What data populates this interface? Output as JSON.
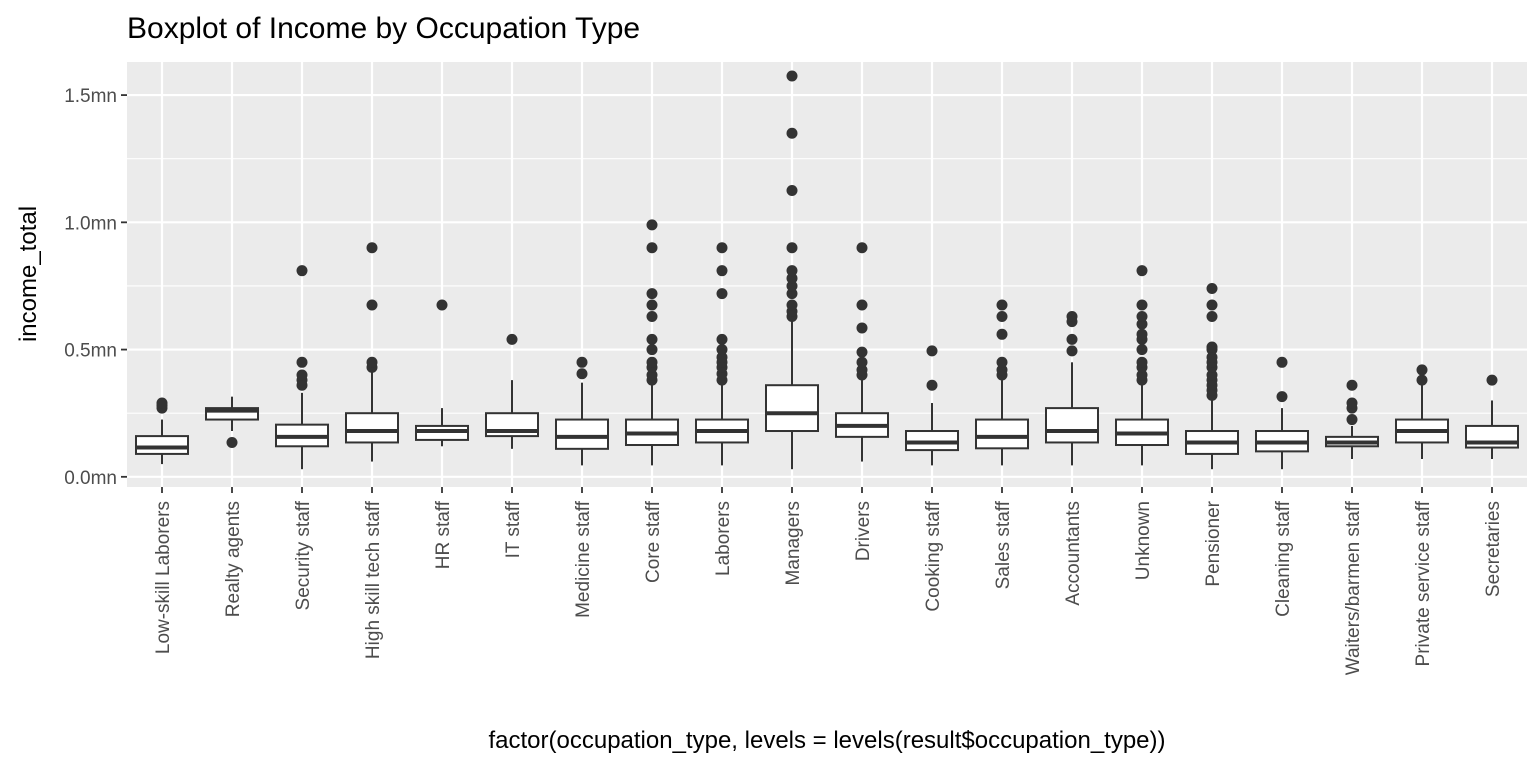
{
  "chart_data": {
    "type": "boxplot",
    "title": "Boxplot of Income by Occupation Type",
    "xlabel": "factor(occupation_type, levels = levels(result$occupation_type))",
    "ylabel": "income_total",
    "ylim": [
      -0.04,
      1.63
    ],
    "yticks": [
      {
        "value": 0.0,
        "label": "0.0mn"
      },
      {
        "value": 0.5,
        "label": "0.5mn"
      },
      {
        "value": 1.0,
        "label": "1.0mn"
      },
      {
        "value": 1.5,
        "label": "1.5mn"
      }
    ],
    "grid": true,
    "legend": "none",
    "colors": {
      "panel": "#ebebeb",
      "grid": "#ffffff",
      "box_fill": "#ffffff",
      "box_line": "#333333",
      "outlier": "#333333"
    },
    "categories": [
      "Low-skill Laborers",
      "Realty agents",
      "Security staff",
      "High skill tech staff",
      "HR staff",
      "IT staff",
      "Medicine staff",
      "Core staff",
      "Laborers",
      "Managers",
      "Drivers",
      "Cooking staff",
      "Sales staff",
      "Accountants",
      "Unknown",
      "Pensioner",
      "Cleaning staff",
      "Waiters/barmen staff",
      "Private service staff",
      "Secretaries"
    ],
    "boxes": [
      {
        "whisker_low": 0.05,
        "q1": 0.09,
        "median": 0.115,
        "q3": 0.16,
        "whisker_high": 0.225,
        "outliers": [
          0.27,
          0.28,
          0.29
        ]
      },
      {
        "whisker_low": 0.18,
        "q1": 0.225,
        "median": 0.26,
        "q3": 0.27,
        "whisker_high": 0.315,
        "outliers": [
          0.135
        ]
      },
      {
        "whisker_low": 0.03,
        "q1": 0.12,
        "median": 0.157,
        "q3": 0.205,
        "whisker_high": 0.33,
        "outliers": [
          0.36,
          0.38,
          0.4,
          0.45,
          0.81
        ]
      },
      {
        "whisker_low": 0.06,
        "q1": 0.135,
        "median": 0.18,
        "q3": 0.25,
        "whisker_high": 0.41,
        "outliers": [
          0.43,
          0.45,
          0.675,
          0.9
        ]
      },
      {
        "whisker_low": 0.12,
        "q1": 0.145,
        "median": 0.18,
        "q3": 0.2,
        "whisker_high": 0.27,
        "outliers": [
          0.675
        ]
      },
      {
        "whisker_low": 0.11,
        "q1": 0.16,
        "median": 0.18,
        "q3": 0.25,
        "whisker_high": 0.38,
        "outliers": [
          0.54
        ]
      },
      {
        "whisker_low": 0.045,
        "q1": 0.11,
        "median": 0.157,
        "q3": 0.225,
        "whisker_high": 0.37,
        "outliers": [
          0.405,
          0.45
        ]
      },
      {
        "whisker_low": 0.045,
        "q1": 0.125,
        "median": 0.17,
        "q3": 0.225,
        "whisker_high": 0.37,
        "outliers": [
          0.38,
          0.4,
          0.43,
          0.45,
          0.5,
          0.54,
          0.63,
          0.675,
          0.72,
          0.9,
          0.99
        ]
      },
      {
        "whisker_low": 0.045,
        "q1": 0.135,
        "median": 0.18,
        "q3": 0.225,
        "whisker_high": 0.37,
        "outliers": [
          0.38,
          0.405,
          0.43,
          0.45,
          0.47,
          0.5,
          0.54,
          0.72,
          0.81,
          0.9
        ]
      },
      {
        "whisker_low": 0.03,
        "q1": 0.18,
        "median": 0.25,
        "q3": 0.36,
        "whisker_high": 0.62,
        "outliers": [
          0.63,
          0.65,
          0.675,
          0.72,
          0.75,
          0.78,
          0.81,
          0.9,
          1.125,
          1.35,
          1.575
        ]
      },
      {
        "whisker_low": 0.06,
        "q1": 0.157,
        "median": 0.2,
        "q3": 0.25,
        "whisker_high": 0.39,
        "outliers": [
          0.4,
          0.42,
          0.45,
          0.49,
          0.585,
          0.675,
          0.9
        ]
      },
      {
        "whisker_low": 0.045,
        "q1": 0.105,
        "median": 0.135,
        "q3": 0.18,
        "whisker_high": 0.29,
        "outliers": [
          0.36,
          0.495
        ]
      },
      {
        "whisker_low": 0.045,
        "q1": 0.112,
        "median": 0.157,
        "q3": 0.225,
        "whisker_high": 0.38,
        "outliers": [
          0.4,
          0.42,
          0.45,
          0.56,
          0.63,
          0.675
        ]
      },
      {
        "whisker_low": 0.045,
        "q1": 0.135,
        "median": 0.18,
        "q3": 0.27,
        "whisker_high": 0.45,
        "outliers": [
          0.495,
          0.54,
          0.61,
          0.63
        ]
      },
      {
        "whisker_low": 0.045,
        "q1": 0.125,
        "median": 0.17,
        "q3": 0.225,
        "whisker_high": 0.37,
        "outliers": [
          0.38,
          0.4,
          0.43,
          0.45,
          0.5,
          0.54,
          0.56,
          0.6,
          0.63,
          0.675,
          0.81
        ]
      },
      {
        "whisker_low": 0.03,
        "q1": 0.09,
        "median": 0.135,
        "q3": 0.18,
        "whisker_high": 0.3,
        "outliers": [
          0.32,
          0.34,
          0.36,
          0.38,
          0.4,
          0.43,
          0.45,
          0.47,
          0.5,
          0.51,
          0.63,
          0.675,
          0.74
        ]
      },
      {
        "whisker_low": 0.03,
        "q1": 0.1,
        "median": 0.135,
        "q3": 0.18,
        "whisker_high": 0.27,
        "outliers": [
          0.315,
          0.45
        ]
      },
      {
        "whisker_low": 0.07,
        "q1": 0.12,
        "median": 0.135,
        "q3": 0.157,
        "whisker_high": 0.2,
        "outliers": [
          0.225,
          0.27,
          0.29,
          0.36
        ]
      },
      {
        "whisker_low": 0.07,
        "q1": 0.135,
        "median": 0.18,
        "q3": 0.225,
        "whisker_high": 0.36,
        "outliers": [
          0.38,
          0.42
        ]
      },
      {
        "whisker_low": 0.07,
        "q1": 0.115,
        "median": 0.135,
        "q3": 0.2,
        "whisker_high": 0.3,
        "outliers": [
          0.38
        ]
      }
    ]
  }
}
